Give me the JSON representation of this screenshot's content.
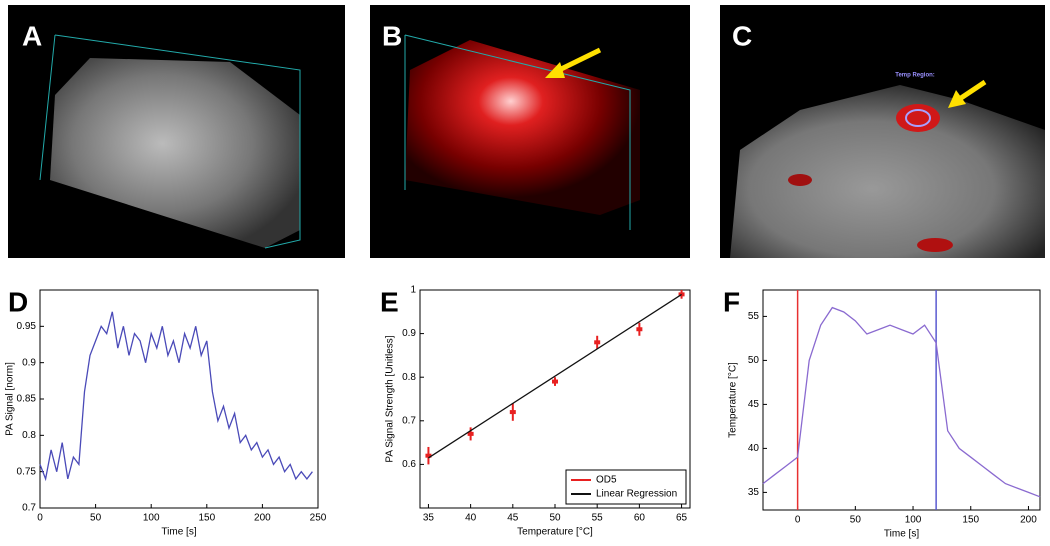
{
  "images": [
    {
      "label": "A"
    },
    {
      "label": "B"
    },
    {
      "label": "C",
      "annotation": "Temp Region:"
    }
  ],
  "chart_data": [
    {
      "type": "line",
      "title": "D",
      "xlabel": "Time [s]",
      "ylabel": "PA Signal [norm]",
      "xlim": [
        0,
        250
      ],
      "xticks": [
        0,
        50,
        100,
        150,
        200,
        250
      ],
      "ylim": [
        0.7,
        1
      ],
      "yticks": [
        0.7,
        0.75,
        0.8,
        0.85,
        0.9,
        0.95
      ],
      "series": [
        {
          "color": "#4a4ab8",
          "x": [
            0,
            5,
            10,
            15,
            20,
            25,
            30,
            35,
            40,
            45,
            50,
            55,
            60,
            65,
            70,
            75,
            80,
            85,
            90,
            95,
            100,
            105,
            110,
            115,
            120,
            125,
            130,
            135,
            140,
            145,
            150,
            155,
            160,
            165,
            170,
            175,
            180,
            185,
            190,
            195,
            200,
            205,
            210,
            215,
            220,
            225,
            230,
            235,
            240,
            245
          ],
          "values": [
            0.76,
            0.74,
            0.78,
            0.75,
            0.79,
            0.74,
            0.77,
            0.76,
            0.86,
            0.91,
            0.93,
            0.95,
            0.94,
            0.97,
            0.92,
            0.95,
            0.91,
            0.94,
            0.93,
            0.9,
            0.94,
            0.92,
            0.95,
            0.91,
            0.93,
            0.9,
            0.94,
            0.92,
            0.95,
            0.91,
            0.93,
            0.86,
            0.82,
            0.84,
            0.81,
            0.83,
            0.79,
            0.8,
            0.78,
            0.79,
            0.77,
            0.78,
            0.76,
            0.77,
            0.75,
            0.76,
            0.74,
            0.75,
            0.74,
            0.75
          ]
        }
      ]
    },
    {
      "type": "scatter",
      "title": "E",
      "xlabel": "Temperature [°C]",
      "ylabel": "PA Signal Strength [Unitless]",
      "xlim": [
        34,
        66
      ],
      "xticks": [
        35,
        40,
        45,
        50,
        55,
        60,
        65
      ],
      "ylim": [
        0.5,
        1
      ],
      "yticks": [
        0.6,
        0.7,
        0.8,
        0.9,
        1
      ],
      "legend": "lower right",
      "series": [
        {
          "name": "OD5",
          "color": "#e82020",
          "style": "markers",
          "x": [
            35,
            40,
            45,
            50,
            55,
            60,
            65
          ],
          "values": [
            0.62,
            0.67,
            0.72,
            0.79,
            0.88,
            0.91,
            0.99
          ],
          "errors": [
            0.02,
            0.015,
            0.02,
            0.01,
            0.015,
            0.015,
            0.01
          ]
        },
        {
          "name": "Linear Regression",
          "color": "#111111",
          "style": "line",
          "x": [
            35,
            65
          ],
          "values": [
            0.615,
            0.99
          ]
        }
      ]
    },
    {
      "type": "line",
      "title": "F",
      "xlabel": "Time [s]",
      "ylabel": "Temperature [°C]",
      "xlim": [
        -30,
        210
      ],
      "xticks": [
        0,
        50,
        100,
        150,
        200
      ],
      "ylim": [
        33,
        58
      ],
      "yticks": [
        35,
        40,
        45,
        50,
        55
      ],
      "vlines": [
        {
          "x": 0,
          "color": "#e83030"
        },
        {
          "x": 120,
          "color": "#5a5ad0"
        }
      ],
      "series": [
        {
          "color": "#8a6ad0",
          "x": [
            -30,
            -20,
            -10,
            0,
            10,
            20,
            30,
            40,
            50,
            60,
            70,
            80,
            90,
            100,
            110,
            120,
            130,
            140,
            150,
            160,
            170,
            180,
            190,
            200,
            210
          ],
          "values": [
            36,
            37,
            38,
            39,
            50,
            54,
            56,
            55.5,
            54.5,
            53,
            53.5,
            54,
            53.5,
            53,
            54,
            52,
            42,
            40,
            39,
            38,
            37,
            36,
            35.5,
            35,
            34.5
          ]
        }
      ]
    }
  ]
}
